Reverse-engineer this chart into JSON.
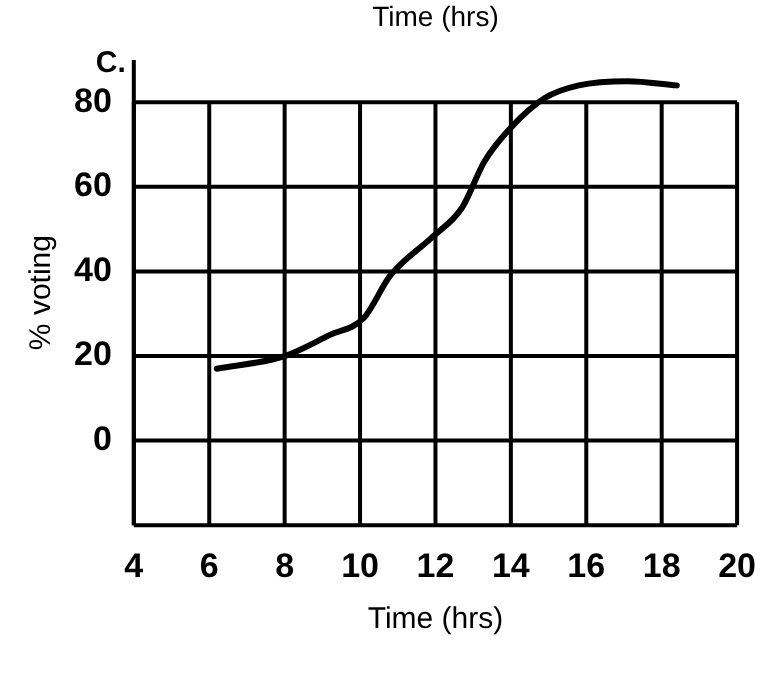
{
  "chart_data": {
    "type": "line",
    "title": "C.",
    "xlabel": "Time (hrs)",
    "ylabel": "% voting",
    "annotations": [
      "Time (hrs)"
    ],
    "x": [
      6.2,
      8,
      9.2,
      10.1,
      10.8,
      11.9,
      12.7,
      13.3,
      14,
      14.9,
      15.8,
      17.1,
      18.4
    ],
    "series": [
      {
        "color": "#000000",
        "values": [
          17,
          20,
          25,
          29,
          39,
          48,
          55,
          66,
          74,
          81,
          84,
          85,
          84
        ]
      }
    ],
    "xlim": [
      4,
      20
    ],
    "xticks": [
      4,
      6,
      8,
      10,
      12,
      14,
      16,
      18,
      20
    ],
    "ylim": [
      -20,
      90
    ],
    "yticks": [
      {
        "value": -20,
        "label": null
      },
      0,
      20,
      40,
      60,
      80
    ],
    "grid": true,
    "legend": false,
    "marker": "none",
    "line_style": "solid"
  }
}
